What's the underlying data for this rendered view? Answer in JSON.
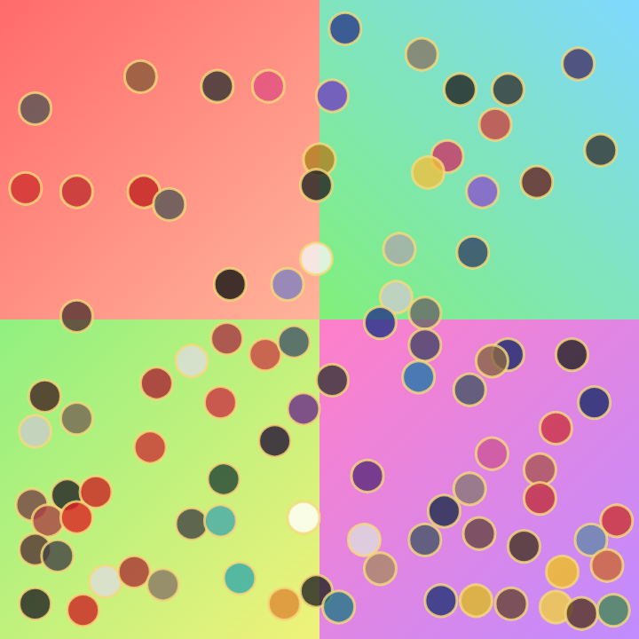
{
  "chart_data": {
    "type": "scatter",
    "x": [
      -5.6,
      -3.2,
      -1.6,
      -8.9,
      -9.2,
      -7.6,
      -5.5,
      -4.7,
      0.0,
      -0.1,
      0.4,
      -0.1,
      -1.0,
      -2.8,
      -7.6,
      0.8,
      3.2,
      8.1,
      4.4,
      5.9,
      5.5,
      4.0,
      3.4,
      5.1,
      6.8,
      8.8,
      2.5,
      4.8,
      2.4,
      3.3,
      1.9,
      3.3,
      5.9,
      7.9,
      5.4,
      4.7,
      3.1,
      0.4,
      8.6,
      7.4,
      5.4,
      6.9,
      4.7,
      1.5,
      3.9,
      6.9,
      5.0,
      3.3,
      9.3,
      1.4,
      1.9,
      8.5,
      6.4,
      7.6,
      9.0,
      3.8,
      4.9,
      6.0,
      7.4,
      8.2,
      9.2,
      -2.9,
      -1.7,
      -0.8,
      -5.1,
      -4.0,
      -3.1,
      -0.5,
      -8.6,
      -7.6,
      -8.9,
      -5.3,
      -1.4,
      -3.0,
      -0.5,
      -4.0,
      -3.1,
      -9.0,
      -7.9,
      -7.0,
      -8.5,
      -7.6,
      -8.9,
      -8.2,
      -6.7,
      -5.8,
      -4.9,
      -2.5,
      -1.1,
      -0.1,
      0.6,
      -8.9,
      -7.4
    ],
    "values": [
      7.6,
      7.3,
      7.3,
      6.6,
      4.1,
      4.0,
      4.0,
      3.6,
      5.0,
      4.2,
      7.0,
      1.9,
      1.1,
      1.1,
      0.1,
      9.1,
      8.3,
      8.0,
      7.2,
      7.2,
      6.1,
      5.1,
      4.6,
      4.0,
      4.3,
      5.3,
      2.2,
      2.1,
      0.7,
      0.2,
      -0.1,
      -0.8,
      -1.1,
      -1.1,
      -1.3,
      -2.2,
      -1.8,
      -1.9,
      -2.6,
      -3.4,
      -4.2,
      -4.7,
      -5.3,
      -4.9,
      -6.0,
      -5.6,
      -6.7,
      -6.9,
      -6.3,
      -6.9,
      -7.8,
      -6.9,
      -7.1,
      -7.9,
      -7.7,
      -8.8,
      -8.8,
      -8.9,
      -9.0,
      -9.2,
      -9.1,
      -0.6,
      -1.1,
      -0.7,
      -2.0,
      -1.3,
      -2.6,
      -2.8,
      -2.4,
      -3.1,
      -3.5,
      -4.0,
      -3.8,
      -5.0,
      -6.2,
      -6.4,
      -6.3,
      -5.8,
      -5.5,
      -5.4,
      -6.3,
      -6.2,
      -7.2,
      -7.4,
      -8.2,
      -7.9,
      -8.3,
      -8.1,
      -8.9,
      -8.5,
      -9.0,
      -8.9,
      -9.1
    ],
    "colors": [
      "#8a5a3a",
      "#333333",
      "#e05080",
      "#555555",
      "#d03030",
      "#c03030",
      "#c02020",
      "#555555",
      "#b08020",
      "#222222",
      "#7040c0",
      "#f4f4f4",
      "#8080c0",
      "#111111",
      "#553333",
      "#2a3a8a",
      "#887766",
      "#443366",
      "#222222",
      "#333333",
      "#cc4444",
      "#cc3366",
      "#f0c040",
      "#8855cc",
      "#662222",
      "#333333",
      "#aaaaaa",
      "#334466",
      "#cccccc",
      "#666666",
      "#223388",
      "#444466",
      "#1a2a6a",
      "#222222",
      "#886644",
      "#445566",
      "#2277aa",
      "#333333",
      "#1a2a6a",
      "#cc3344",
      "#cc5599",
      "#aa5555",
      "#887777",
      "#5a2a7a",
      "#1a2a4a",
      "#c03040",
      "#664444",
      "#445566",
      "#cc3333",
      "#dddddd",
      "#aa8866",
      "#6688aa",
      "#443322",
      "#f0c020",
      "#cc6633",
      "#223377",
      "#ddbb22",
      "#664433",
      "#f0d040",
      "#553322",
      "#448855",
      "#aa3344",
      "#cc4444",
      "#445566",
      "#aa2233",
      "#dddddd",
      "#cc3344",
      "#6a2a8a",
      "#442222",
      "#776655",
      "#cccccc",
      "#cc3333",
      "#221133",
      "#224433",
      "#ffffff",
      "#444444",
      "#44aaaa",
      "#774444",
      "#222222",
      "#cc2222",
      "#aa4444",
      "#dd2222",
      "#553333",
      "#444444",
      "#dddddd",
      "#aa3333",
      "#887766",
      "#33aaaa",
      "#dd8833",
      "#222222",
      "#227788",
      "#222222",
      "#cc2222"
    ],
    "marker": "circle",
    "xlim": [
      -10,
      10
    ],
    "ylim": [
      -10,
      10
    ],
    "xticks": [
      -10,
      0,
      10
    ],
    "yticks": [
      -10,
      0,
      10
    ],
    "grid": false,
    "tick_labels": false
  }
}
